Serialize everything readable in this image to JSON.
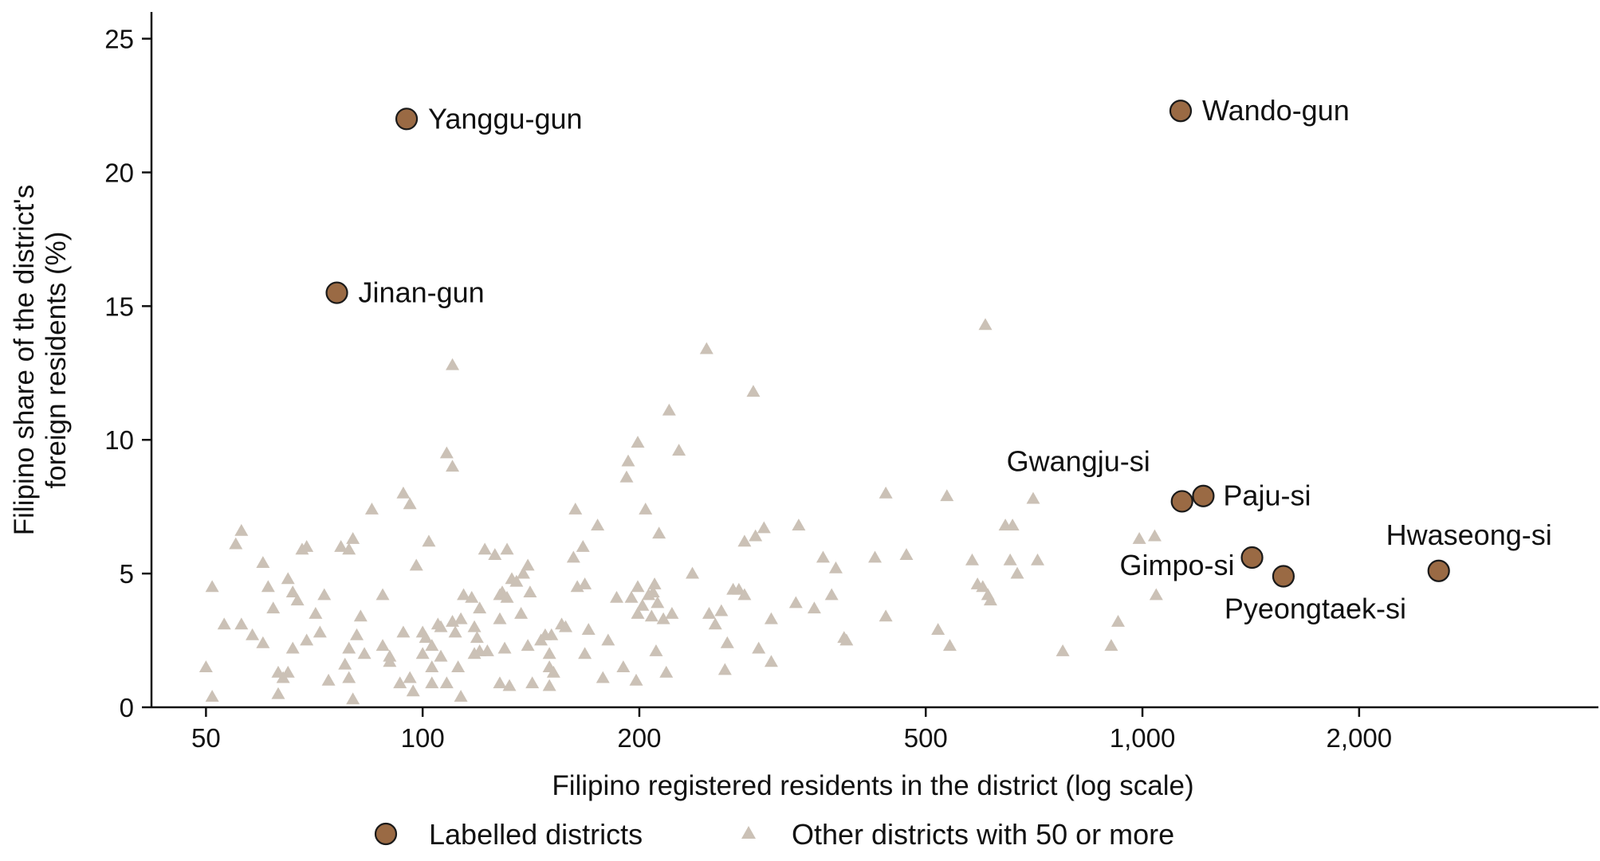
{
  "colors": {
    "labelled_fill": "#9a6a44",
    "labelled_stroke": "#1a1a1a",
    "other_fill": "#cbc1b6",
    "axis": "#111111",
    "text": "#111111"
  },
  "chart_data": {
    "type": "scatter",
    "xlabel": "Filipino registered residents in the district (log scale)",
    "ylabel": "Filipino share of the district's foreign residents (%)",
    "x_scale": "log",
    "xlim": [
      42,
      4300
    ],
    "ylim": [
      0,
      26
    ],
    "x_ticks": [
      50,
      100,
      200,
      500,
      1000,
      2000
    ],
    "x_tick_labels": [
      "50",
      "100",
      "200",
      "500",
      "1,000",
      "2,000"
    ],
    "y_ticks": [
      0,
      5,
      10,
      15,
      20,
      25
    ],
    "y_tick_labels": [
      "0",
      "5",
      "10",
      "15",
      "20",
      "25"
    ],
    "grid": false,
    "legend_position": "bottom",
    "legend": [
      {
        "label": "Labelled districts",
        "marker": "circle"
      },
      {
        "label": "Other districts with 50 or more",
        "marker": "triangle"
      }
    ],
    "labelled_points": [
      {
        "name": "Yanggu-gun",
        "x": 95,
        "y": 22.0
      },
      {
        "name": "Wando-gun",
        "x": 1130,
        "y": 22.3
      },
      {
        "name": "Jinan-gun",
        "x": 76,
        "y": 15.5
      },
      {
        "name": "Gwangju-si",
        "x": 1135,
        "y": 7.7
      },
      {
        "name": "Paju-si",
        "x": 1215,
        "y": 7.9
      },
      {
        "name": "Gimpo-si",
        "x": 1420,
        "y": 5.6
      },
      {
        "name": "Pyeongtaek-si",
        "x": 1570,
        "y": 4.9
      },
      {
        "name": "Hwaseong-si",
        "x": 2580,
        "y": 5.1
      }
    ],
    "other_points": [
      [
        50,
        1.5
      ],
      [
        51,
        4.5
      ],
      [
        51,
        0.4
      ],
      [
        53,
        3.1
      ],
      [
        55,
        6.1
      ],
      [
        56,
        6.6
      ],
      [
        56,
        3.1
      ],
      [
        58,
        2.7
      ],
      [
        60,
        5.4
      ],
      [
        60,
        2.4
      ],
      [
        61,
        4.5
      ],
      [
        62,
        3.7
      ],
      [
        63,
        1.3
      ],
      [
        63,
        0.5
      ],
      [
        64,
        1.1
      ],
      [
        65,
        4.8
      ],
      [
        65,
        1.3
      ],
      [
        66,
        4.3
      ],
      [
        66,
        2.2
      ],
      [
        67,
        4.0
      ],
      [
        68,
        5.9
      ],
      [
        69,
        6.0
      ],
      [
        69,
        2.5
      ],
      [
        71,
        3.5
      ],
      [
        72,
        2.8
      ],
      [
        73,
        4.2
      ],
      [
        74,
        1.0
      ],
      [
        77,
        6.0
      ],
      [
        78,
        1.6
      ],
      [
        79,
        2.2
      ],
      [
        79,
        1.1
      ],
      [
        79,
        5.9
      ],
      [
        80,
        6.3
      ],
      [
        80,
        0.3
      ],
      [
        81,
        2.7
      ],
      [
        82,
        3.4
      ],
      [
        83,
        2.0
      ],
      [
        85,
        7.4
      ],
      [
        88,
        4.2
      ],
      [
        88,
        2.3
      ],
      [
        90,
        1.9
      ],
      [
        90,
        1.7
      ],
      [
        93,
        0.9
      ],
      [
        94,
        8.0
      ],
      [
        94,
        2.8
      ],
      [
        96,
        1.1
      ],
      [
        96,
        7.6
      ],
      [
        97,
        0.6
      ],
      [
        98,
        5.3
      ],
      [
        100,
        2.0
      ],
      [
        100,
        2.8
      ],
      [
        101,
        2.6
      ],
      [
        102,
        6.2
      ],
      [
        103,
        2.3
      ],
      [
        103,
        1.5
      ],
      [
        103,
        0.9
      ],
      [
        105,
        3.1
      ],
      [
        106,
        1.9
      ],
      [
        106,
        3.0
      ],
      [
        108,
        9.5
      ],
      [
        108,
        0.9
      ],
      [
        110,
        12.8
      ],
      [
        110,
        9.0
      ],
      [
        110,
        3.2
      ],
      [
        111,
        2.8
      ],
      [
        112,
        1.5
      ],
      [
        113,
        0.4
      ],
      [
        113,
        3.3
      ],
      [
        114,
        4.2
      ],
      [
        117,
        4.1
      ],
      [
        118,
        3.0
      ],
      [
        118,
        2.0
      ],
      [
        119,
        2.6
      ],
      [
        120,
        3.7
      ],
      [
        120,
        2.1
      ],
      [
        122,
        5.9
      ],
      [
        123,
        2.1
      ],
      [
        126,
        5.7
      ],
      [
        128,
        3.3
      ],
      [
        128,
        4.2
      ],
      [
        128,
        0.9
      ],
      [
        129,
        4.3
      ],
      [
        130,
        2.2
      ],
      [
        131,
        5.9
      ],
      [
        131,
        4.1
      ],
      [
        132,
        0.8
      ],
      [
        133,
        4.8
      ],
      [
        135,
        4.7
      ],
      [
        137,
        3.5
      ],
      [
        138,
        5.0
      ],
      [
        140,
        5.3
      ],
      [
        140,
        2.3
      ],
      [
        141,
        4.3
      ],
      [
        142,
        0.9
      ],
      [
        146,
        2.5
      ],
      [
        148,
        2.7
      ],
      [
        150,
        1.5
      ],
      [
        150,
        2.0
      ],
      [
        150,
        0.8
      ],
      [
        151,
        2.7
      ],
      [
        152,
        1.3
      ],
      [
        156,
        3.1
      ],
      [
        158,
        3.0
      ],
      [
        162,
        5.6
      ],
      [
        163,
        7.4
      ],
      [
        164,
        4.5
      ],
      [
        167,
        6.0
      ],
      [
        168,
        4.6
      ],
      [
        168,
        2.0
      ],
      [
        170,
        2.9
      ],
      [
        175,
        6.8
      ],
      [
        178,
        1.1
      ],
      [
        181,
        2.5
      ],
      [
        186,
        4.1
      ],
      [
        190,
        1.5
      ],
      [
        192,
        8.6
      ],
      [
        193,
        9.2
      ],
      [
        195,
        4.1
      ],
      [
        198,
        1.0
      ],
      [
        199,
        9.9
      ],
      [
        199,
        4.5
      ],
      [
        199,
        3.5
      ],
      [
        202,
        3.8
      ],
      [
        204,
        7.4
      ],
      [
        206,
        4.2
      ],
      [
        208,
        3.4
      ],
      [
        209,
        4.3
      ],
      [
        210,
        4.6
      ],
      [
        211,
        2.1
      ],
      [
        212,
        3.9
      ],
      [
        213,
        6.5
      ],
      [
        216,
        3.3
      ],
      [
        218,
        1.3
      ],
      [
        220,
        11.1
      ],
      [
        222,
        3.5
      ],
      [
        227,
        9.6
      ],
      [
        237,
        5.0
      ],
      [
        248,
        13.4
      ],
      [
        250,
        3.5
      ],
      [
        255,
        3.1
      ],
      [
        260,
        3.6
      ],
      [
        263,
        1.4
      ],
      [
        265,
        2.4
      ],
      [
        270,
        4.4
      ],
      [
        275,
        4.4
      ],
      [
        280,
        4.2
      ],
      [
        280,
        6.2
      ],
      [
        288,
        11.8
      ],
      [
        290,
        6.4
      ],
      [
        293,
        2.2
      ],
      [
        298,
        6.7
      ],
      [
        305,
        3.3
      ],
      [
        305,
        1.7
      ],
      [
        330,
        3.9
      ],
      [
        333,
        6.8
      ],
      [
        350,
        3.7
      ],
      [
        360,
        5.6
      ],
      [
        370,
        4.2
      ],
      [
        375,
        5.2
      ],
      [
        385,
        2.6
      ],
      [
        388,
        2.5
      ],
      [
        425,
        5.6
      ],
      [
        440,
        8.0
      ],
      [
        440,
        3.4
      ],
      [
        470,
        5.7
      ],
      [
        520,
        2.9
      ],
      [
        535,
        7.9
      ],
      [
        540,
        2.3
      ],
      [
        580,
        5.5
      ],
      [
        590,
        4.6
      ],
      [
        600,
        4.5
      ],
      [
        605,
        14.3
      ],
      [
        610,
        4.2
      ],
      [
        615,
        4.0
      ],
      [
        645,
        6.8
      ],
      [
        655,
        5.5
      ],
      [
        660,
        6.8
      ],
      [
        670,
        5.0
      ],
      [
        705,
        7.8
      ],
      [
        715,
        5.5
      ],
      [
        775,
        2.1
      ],
      [
        905,
        2.3
      ],
      [
        925,
        3.2
      ],
      [
        990,
        6.3
      ],
      [
        1040,
        6.4
      ],
      [
        1045,
        4.2
      ]
    ]
  }
}
